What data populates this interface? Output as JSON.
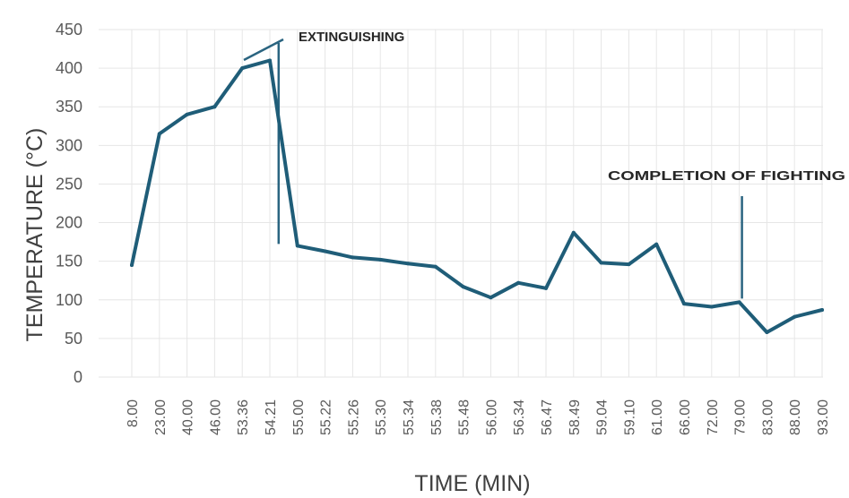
{
  "chart_data": {
    "type": "line",
    "categories": [
      "8.00",
      "23.00",
      "40.00",
      "46.00",
      "53.36",
      "54.21",
      "55.00",
      "55.22",
      "55.26",
      "55.30",
      "55.34",
      "55.38",
      "55.48",
      "56.00",
      "56.34",
      "56.47",
      "58.49",
      "59.04",
      "59.10",
      "61.00",
      "66.00",
      "72.00",
      "79.00",
      "83.00",
      "88.00",
      "93.00"
    ],
    "series": [
      {
        "values": [
          145,
          315,
          340,
          350,
          400,
          410,
          170,
          163,
          155,
          152,
          147,
          143,
          117,
          103,
          122,
          115,
          187,
          148,
          146,
          172,
          95,
          91,
          97,
          58,
          78,
          87
        ]
      }
    ],
    "xlabel": "TIME (MIN)",
    "ylabel": "TEMPERATURE (°C)",
    "ylim": [
      0,
      450
    ],
    "yticks": [
      0,
      50,
      100,
      150,
      200,
      250,
      300,
      350,
      400,
      450
    ],
    "grid": true,
    "colors": {
      "line": "#1f5d78",
      "annotation": "#2a6480",
      "grid": "#e6e6e6"
    },
    "annotations": [
      {
        "text": "EXTINGUISHING",
        "category": "55.00"
      },
      {
        "text": "COMPLETION OF FIGHTING",
        "category": "79.00"
      }
    ]
  }
}
